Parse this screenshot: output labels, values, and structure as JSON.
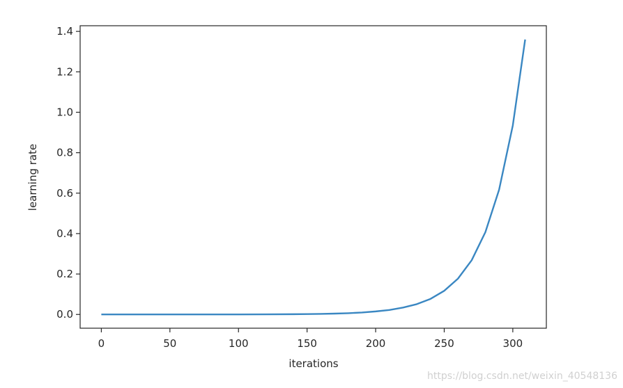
{
  "chart_data": {
    "type": "line",
    "xlabel": "iterations",
    "ylabel": "learning rate",
    "x": [
      0,
      50,
      100,
      120,
      140,
      150,
      160,
      170,
      180,
      190,
      200,
      210,
      220,
      230,
      240,
      250,
      260,
      270,
      280,
      290,
      300,
      309
    ],
    "values": [
      0,
      0,
      0.0002,
      0.0005,
      0.0012,
      0.0018,
      0.0028,
      0.0042,
      0.0063,
      0.0096,
      0.015,
      0.022,
      0.034,
      0.051,
      0.077,
      0.117,
      0.177,
      0.268,
      0.407,
      0.617,
      0.935,
      1.36
    ],
    "color": "#3a87c2",
    "xlim": [
      -15.45,
      324.45
    ],
    "xticks": [
      0,
      50,
      100,
      150,
      200,
      250,
      300
    ],
    "ylim": [
      -0.068,
      1.428
    ],
    "yticks": [
      {
        "value": 0,
        "label": "0.0"
      },
      0.2,
      0.4,
      0.6,
      0.8,
      {
        "value": 1,
        "label": "1.0"
      },
      1.2,
      1.4
    ],
    "grid": false,
    "watermark": "https://blog.csdn.net/weixin_40548136"
  }
}
